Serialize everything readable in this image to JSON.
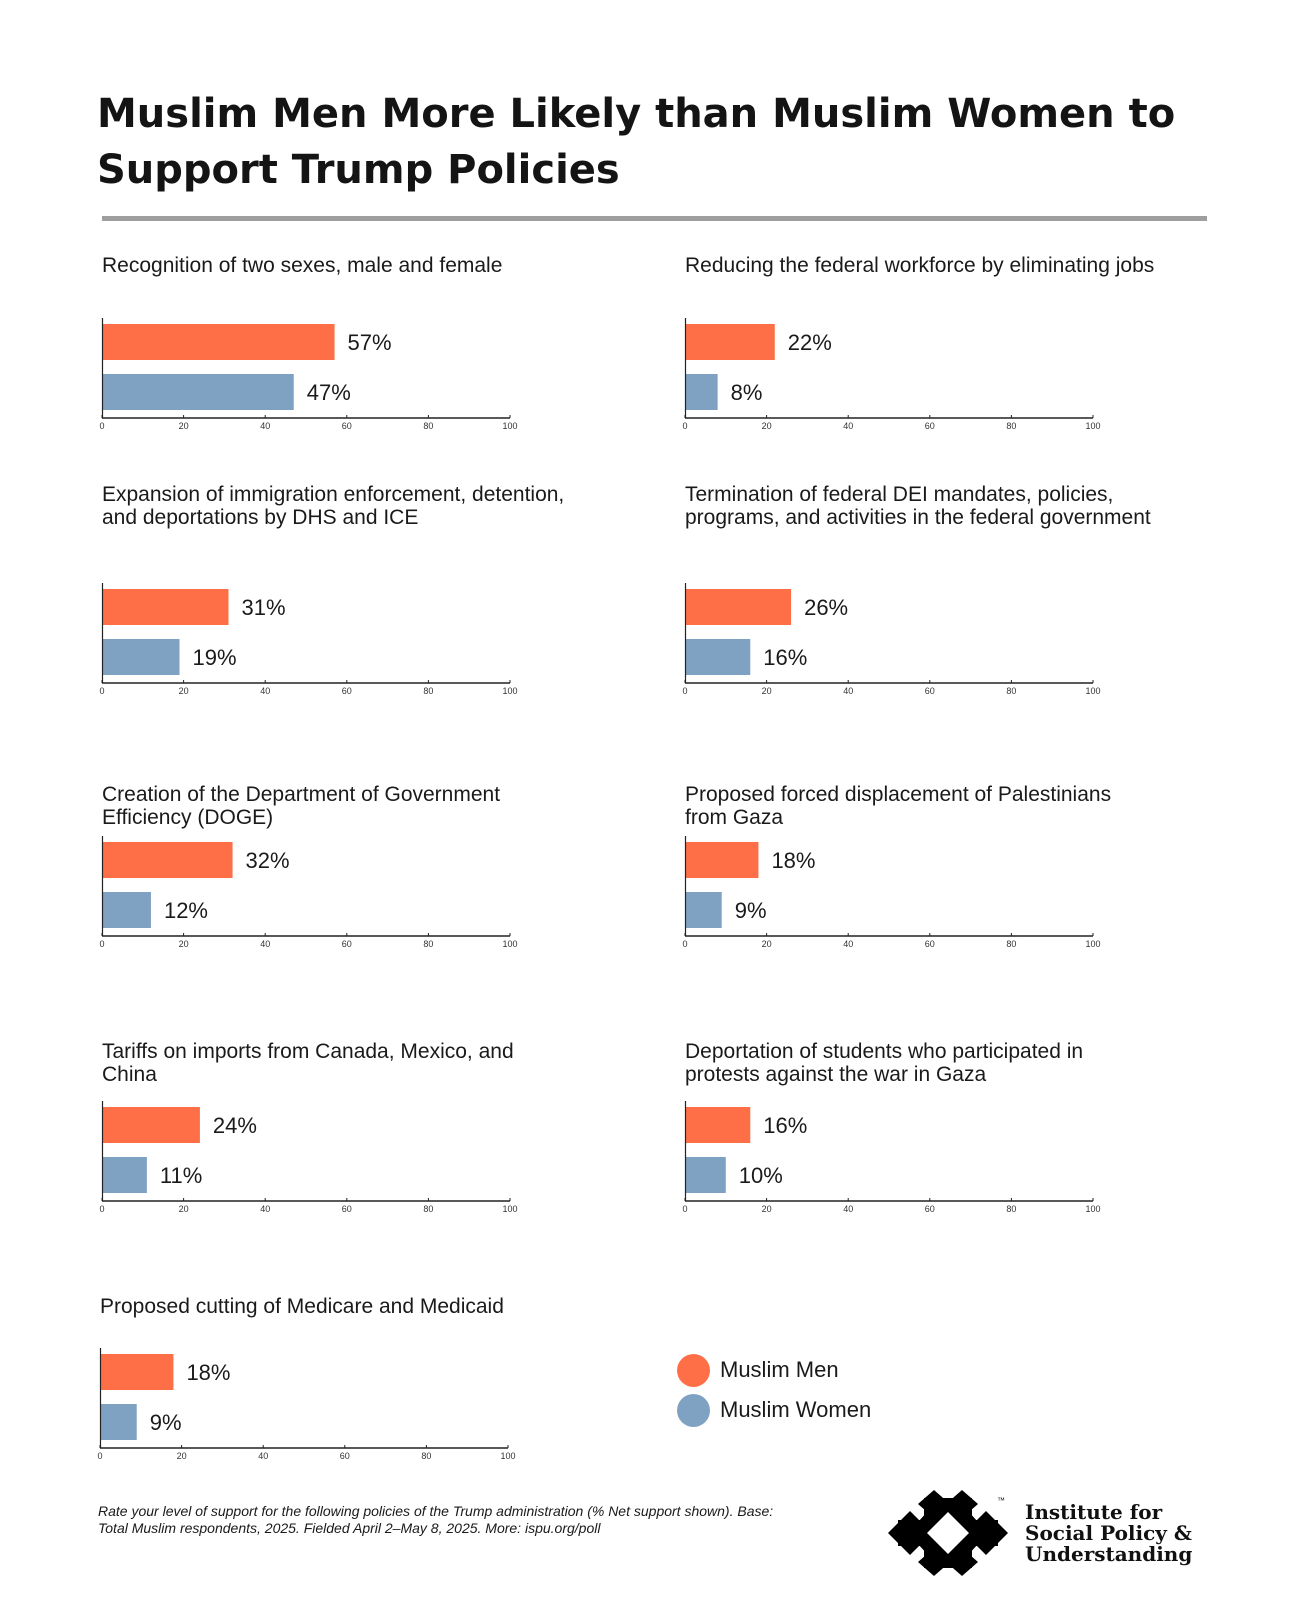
{
  "title": "Muslim Men More Likely than Muslim Women to Support Trump Policies",
  "chart_data": {
    "type": "bar",
    "orientation": "horizontal",
    "xlim": [
      0,
      100
    ],
    "ticks": [
      0,
      20,
      40,
      60,
      80,
      100
    ],
    "value_suffix": "%",
    "legend_position": "bottom-right",
    "grid": false,
    "series_names": [
      "Muslim Men",
      "Muslim Women"
    ],
    "colors": {
      "men": "#FF6F47",
      "women": "#7FA2C3"
    },
    "panels": [
      {
        "title": "Recognition of two sexes, male and female",
        "men": 57,
        "women": 47
      },
      {
        "title": "Reducing the federal workforce by eliminating jobs",
        "men": 22,
        "women": 8
      },
      {
        "title": "Expansion of immigration enforcement, detention, and deportations by DHS and ICE",
        "men": 31,
        "women": 19
      },
      {
        "title": "Termination of federal DEI mandates, policies, programs, and activities in the federal government",
        "men": 26,
        "women": 16
      },
      {
        "title": "Creation of the Department of Government Efficiency (DOGE)",
        "men": 32,
        "women": 12
      },
      {
        "title": "Proposed forced displacement of Palestinians from Gaza",
        "men": 18,
        "women": 9
      },
      {
        "title": "Tariffs on imports from Canada, Mexico, and China",
        "men": 24,
        "women": 11
      },
      {
        "title": "Deportation of students who participated in protests against the war in Gaza",
        "men": 16,
        "women": 10
      },
      {
        "title": "Proposed cutting of Medicare and Medicaid",
        "men": 18,
        "women": 9
      }
    ]
  },
  "legend": [
    {
      "label": "Muslim Men",
      "color": "#FF6F47"
    },
    {
      "label": "Muslim Women",
      "color": "#7FA2C3"
    }
  ],
  "footnote": "Rate your level of support for the following policies of the Trump administration (% Net support shown). Base: Total Muslim respondents, 2025. Fielded April 2–May 8, 2025. More: ispu.org/poll",
  "organization": {
    "line1": "Institute for",
    "line2": "Social Policy &",
    "line3": "Understanding",
    "trademark": "™",
    "logo_icon": "ispu-logo-icon",
    "logo_color": "#000000"
  }
}
